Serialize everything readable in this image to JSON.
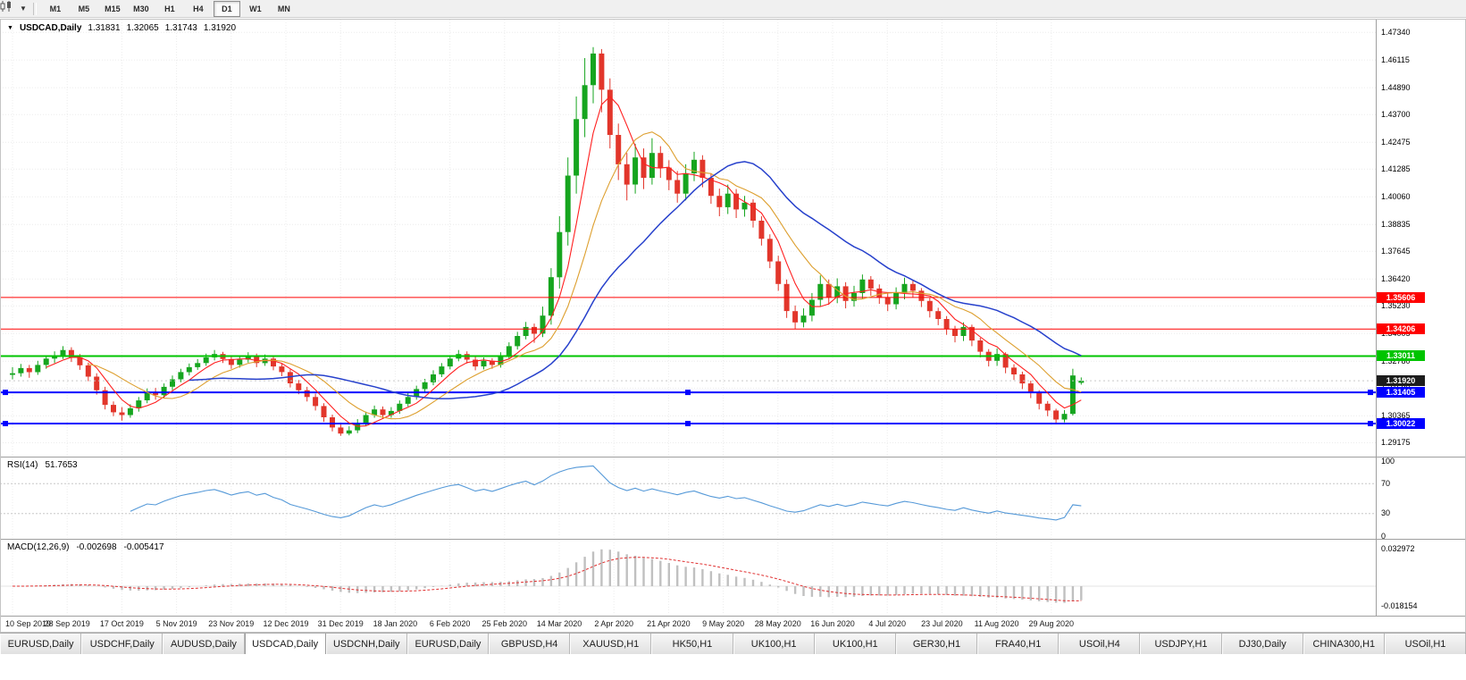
{
  "toolbar": {
    "chart_type_icon": "candlestick-chart-icon",
    "dropdown_icon": "chevron-down-icon",
    "timeframes": [
      "M1",
      "M5",
      "M15",
      "M30",
      "H1",
      "H4",
      "D1",
      "W1",
      "MN"
    ],
    "active_timeframe": "D1"
  },
  "chart_header": {
    "collapse_marker": "▼",
    "symbol": "USDCAD,Daily",
    "open": "1.31831",
    "high": "1.32065",
    "low": "1.31743",
    "close": "1.31920"
  },
  "price_axis_ticks": [
    "1.47340",
    "1.46115",
    "1.44890",
    "1.43700",
    "1.42475",
    "1.41285",
    "1.40060",
    "1.38835",
    "1.37645",
    "1.36420",
    "1.35230",
    "1.34005",
    "1.32780",
    "1.31590",
    "1.30365",
    "1.29175"
  ],
  "hlines": [
    {
      "label": "1.35606",
      "value": 1.35606,
      "color": "#ff0000",
      "width": 1,
      "selected": false
    },
    {
      "label": "1.34206",
      "value": 1.34206,
      "color": "#ff0000",
      "width": 1,
      "selected": false
    },
    {
      "label": "1.33011",
      "value": 1.33011,
      "color": "#00c400",
      "width": 2,
      "selected": false
    },
    {
      "label": "1.31405",
      "value": 1.31405,
      "color": "#0000ff",
      "width": 2,
      "selected": true
    },
    {
      "label": "1.30022",
      "value": 1.30022,
      "color": "#0000ff",
      "width": 2,
      "selected": true
    }
  ],
  "current_price": {
    "label": "1.31920",
    "value": 1.3192,
    "badge_color": "#1c1c1c"
  },
  "date_axis": [
    "10 Sep 2019",
    "28 Sep 2019",
    "17 Oct 2019",
    "5 Nov 2019",
    "23 Nov 2019",
    "12 Dec 2019",
    "31 Dec 2019",
    "18 Jan 2020",
    "6 Feb 2020",
    "25 Feb 2020",
    "14 Mar 2020",
    "2 Apr 2020",
    "21 Apr 2020",
    "9 May 2020",
    "28 May 2020",
    "16 Jun 2020",
    "4 Jul 2020",
    "23 Jul 2020",
    "11 Aug 2020",
    "29 Aug 2020"
  ],
  "rsi_panel": {
    "name": "RSI(14)",
    "value": "51.7653",
    "axis_labels": [
      "100",
      "70",
      "30",
      "0"
    ],
    "axis_values": [
      100,
      70,
      30,
      0
    ],
    "level_lines": [
      70,
      30
    ],
    "line_color": "#5599d8"
  },
  "macd_panel": {
    "name": "MACD(12,26,9)",
    "value_macd": "-0.002698",
    "value_signal": "-0.005417",
    "axis_labels": [
      "0.032972",
      "-0.018154"
    ],
    "axis_values": [
      0.032972,
      -0.018154
    ],
    "histogram_color": "#c0c0c0",
    "signal_color": "#e03030"
  },
  "tabs": [
    "EURUSD,Daily",
    "USDCHF,Daily",
    "AUDUSD,Daily",
    "USDCAD,Daily",
    "USDCNH,Daily",
    "EURUSD,Daily",
    "GBPUSD,H4",
    "XAUUSD,H1",
    "HK50,H1",
    "UK100,H1",
    "UK100,H1",
    "GER30,H1",
    "FRA40,H1",
    "USOil,H4",
    "USDJPY,H1",
    "DJ30,Daily",
    "CHINA300,H1",
    "USOil,H1"
  ],
  "active_tab_index": 3,
  "chart_data": {
    "type": "candlestick",
    "title": "USDCAD Daily",
    "x_range": [
      "10 Sep 2019",
      "4 Sep 2020"
    ],
    "ylim": [
      1.286,
      1.479
    ],
    "up_color": "#16a51f",
    "down_color": "#e2362b",
    "moving_averages": [
      {
        "period": 5,
        "color": "#ff1f1f"
      },
      {
        "period": 10,
        "color": "#dd9f2e"
      },
      {
        "period": 22,
        "color": "#2741cc"
      }
    ],
    "candles": [
      [
        1.3218,
        1.3252,
        1.3198,
        1.3225
      ],
      [
        1.3225,
        1.3266,
        1.321,
        1.3248
      ],
      [
        1.3248,
        1.3262,
        1.3205,
        1.323
      ],
      [
        1.323,
        1.328,
        1.3218,
        1.3262
      ],
      [
        1.3262,
        1.3305,
        1.3245,
        1.329
      ],
      [
        1.329,
        1.3322,
        1.327,
        1.3305
      ],
      [
        1.3305,
        1.3345,
        1.3288,
        1.3328
      ],
      [
        1.3328,
        1.334,
        1.3275,
        1.3295
      ],
      [
        1.3295,
        1.331,
        1.324,
        1.326
      ],
      [
        1.326,
        1.3272,
        1.319,
        1.321
      ],
      [
        1.321,
        1.3225,
        1.313,
        1.315
      ],
      [
        1.315,
        1.3165,
        1.3065,
        1.3085
      ],
      [
        1.3085,
        1.31,
        1.3035,
        1.3052
      ],
      [
        1.3052,
        1.3075,
        1.3015,
        1.304
      ],
      [
        1.304,
        1.3088,
        1.3028,
        1.307
      ],
      [
        1.307,
        1.312,
        1.3055,
        1.3105
      ],
      [
        1.3105,
        1.3158,
        1.3092,
        1.314
      ],
      [
        1.314,
        1.316,
        1.3108,
        1.3128
      ],
      [
        1.3128,
        1.318,
        1.3115,
        1.3165
      ],
      [
        1.3165,
        1.3215,
        1.315,
        1.3198
      ],
      [
        1.3198,
        1.3245,
        1.3185,
        1.323
      ],
      [
        1.323,
        1.3268,
        1.3215,
        1.3252
      ],
      [
        1.3252,
        1.3288,
        1.324,
        1.327
      ],
      [
        1.327,
        1.3312,
        1.3258,
        1.3295
      ],
      [
        1.3295,
        1.3328,
        1.3282,
        1.331
      ],
      [
        1.331,
        1.332,
        1.327,
        1.3288
      ],
      [
        1.3288,
        1.33,
        1.3245,
        1.3262
      ],
      [
        1.3262,
        1.3302,
        1.325,
        1.3285
      ],
      [
        1.3285,
        1.3318,
        1.3272,
        1.33
      ],
      [
        1.33,
        1.3312,
        1.3252,
        1.327
      ],
      [
        1.327,
        1.3308,
        1.3258,
        1.329
      ],
      [
        1.329,
        1.33,
        1.3238,
        1.3255
      ],
      [
        1.3255,
        1.3268,
        1.3212,
        1.323
      ],
      [
        1.323,
        1.3242,
        1.3162,
        1.318
      ],
      [
        1.318,
        1.3195,
        1.3132,
        1.315
      ],
      [
        1.315,
        1.3165,
        1.31,
        1.312
      ],
      [
        1.312,
        1.3135,
        1.306,
        1.308
      ],
      [
        1.308,
        1.3092,
        1.301,
        1.303
      ],
      [
        1.303,
        1.3042,
        1.2968,
        1.2985
      ],
      [
        1.2985,
        1.2998,
        1.2948,
        1.2958
      ],
      [
        1.2958,
        1.299,
        1.295,
        1.2972
      ],
      [
        1.2972,
        1.3022,
        1.296,
        1.3005
      ],
      [
        1.3005,
        1.3055,
        1.2992,
        1.304
      ],
      [
        1.304,
        1.3082,
        1.3028,
        1.3065
      ],
      [
        1.3065,
        1.3078,
        1.3022,
        1.304
      ],
      [
        1.304,
        1.3075,
        1.3028,
        1.3058
      ],
      [
        1.3058,
        1.3105,
        1.3045,
        1.309
      ],
      [
        1.309,
        1.3138,
        1.3078,
        1.312
      ],
      [
        1.312,
        1.317,
        1.3108,
        1.3155
      ],
      [
        1.3155,
        1.32,
        1.3142,
        1.3185
      ],
      [
        1.3185,
        1.3238,
        1.3172,
        1.322
      ],
      [
        1.322,
        1.327,
        1.3208,
        1.3255
      ],
      [
        1.3255,
        1.3305,
        1.3242,
        1.329
      ],
      [
        1.329,
        1.3328,
        1.3278,
        1.331
      ],
      [
        1.331,
        1.3322,
        1.3268,
        1.3285
      ],
      [
        1.3285,
        1.3298,
        1.3238,
        1.3255
      ],
      [
        1.3255,
        1.3295,
        1.3242,
        1.328
      ],
      [
        1.328,
        1.3292,
        1.3245,
        1.3262
      ],
      [
        1.3262,
        1.3318,
        1.325,
        1.33
      ],
      [
        1.33,
        1.3362,
        1.3288,
        1.3345
      ],
      [
        1.3345,
        1.3408,
        1.333,
        1.339
      ],
      [
        1.339,
        1.3452,
        1.3375,
        1.343
      ],
      [
        1.343,
        1.3445,
        1.336,
        1.34
      ],
      [
        1.34,
        1.352,
        1.3385,
        1.348
      ],
      [
        1.348,
        1.369,
        1.344,
        1.365
      ],
      [
        1.365,
        1.392,
        1.36,
        1.385
      ],
      [
        1.385,
        1.418,
        1.379,
        1.41
      ],
      [
        1.41,
        1.445,
        1.402,
        1.435
      ],
      [
        1.435,
        1.462,
        1.427,
        1.45
      ],
      [
        1.45,
        1.4668,
        1.442,
        1.464
      ],
      [
        1.464,
        1.466,
        1.438,
        1.448
      ],
      [
        1.448,
        1.453,
        1.422,
        1.428
      ],
      [
        1.428,
        1.433,
        1.408,
        1.415
      ],
      [
        1.415,
        1.42,
        1.399,
        1.406
      ],
      [
        1.406,
        1.424,
        1.402,
        1.418
      ],
      [
        1.418,
        1.422,
        1.404,
        1.409
      ],
      [
        1.409,
        1.4265,
        1.406,
        1.42
      ],
      [
        1.42,
        1.423,
        1.409,
        1.4135
      ],
      [
        1.4135,
        1.4168,
        1.4035,
        1.408
      ],
      [
        1.408,
        1.412,
        1.398,
        1.402
      ],
      [
        1.402,
        1.415,
        1.399,
        1.411
      ],
      [
        1.411,
        1.4205,
        1.4075,
        1.417
      ],
      [
        1.417,
        1.419,
        1.4048,
        1.409
      ],
      [
        1.409,
        1.411,
        1.3975,
        1.401
      ],
      [
        1.401,
        1.4042,
        1.392,
        1.396
      ],
      [
        1.396,
        1.406,
        1.393,
        1.402
      ],
      [
        1.402,
        1.404,
        1.3912,
        1.395
      ],
      [
        1.395,
        1.401,
        1.3918,
        1.398
      ],
      [
        1.398,
        1.3995,
        1.387,
        1.39
      ],
      [
        1.39,
        1.392,
        1.379,
        1.382
      ],
      [
        1.382,
        1.384,
        1.369,
        1.372
      ],
      [
        1.372,
        1.3745,
        1.359,
        1.362
      ],
      [
        1.362,
        1.364,
        1.347,
        1.35
      ],
      [
        1.35,
        1.3525,
        1.342,
        1.345
      ],
      [
        1.345,
        1.3512,
        1.3428,
        1.348
      ],
      [
        1.348,
        1.358,
        1.3455,
        1.355
      ],
      [
        1.355,
        1.3658,
        1.352,
        1.362
      ],
      [
        1.362,
        1.364,
        1.3528,
        1.356
      ],
      [
        1.356,
        1.3645,
        1.3535,
        1.361
      ],
      [
        1.361,
        1.3628,
        1.3512,
        1.3545
      ],
      [
        1.3545,
        1.3612,
        1.352,
        1.358
      ],
      [
        1.358,
        1.3662,
        1.3555,
        1.364
      ],
      [
        1.364,
        1.3655,
        1.3568,
        1.36
      ],
      [
        1.36,
        1.3618,
        1.3532,
        1.356
      ],
      [
        1.356,
        1.3582,
        1.35,
        1.353
      ],
      [
        1.353,
        1.3605,
        1.3508,
        1.358
      ],
      [
        1.358,
        1.3648,
        1.3552,
        1.362
      ],
      [
        1.362,
        1.3635,
        1.356,
        1.359
      ],
      [
        1.359,
        1.3602,
        1.3518,
        1.3545
      ],
      [
        1.3545,
        1.3558,
        1.3472,
        1.35
      ],
      [
        1.35,
        1.3515,
        1.3438,
        1.3465
      ],
      [
        1.3465,
        1.3478,
        1.3395,
        1.342
      ],
      [
        1.342,
        1.3435,
        1.3362,
        1.339
      ],
      [
        1.339,
        1.345,
        1.3368,
        1.343
      ],
      [
        1.343,
        1.344,
        1.3345,
        1.337
      ],
      [
        1.337,
        1.3382,
        1.3295,
        1.332
      ],
      [
        1.332,
        1.3332,
        1.3255,
        1.328
      ],
      [
        1.328,
        1.3335,
        1.3258,
        1.331
      ],
      [
        1.331,
        1.3318,
        1.3225,
        1.325
      ],
      [
        1.325,
        1.3265,
        1.3195,
        1.322
      ],
      [
        1.322,
        1.3232,
        1.3155,
        1.318
      ],
      [
        1.318,
        1.3192,
        1.3115,
        1.314
      ],
      [
        1.314,
        1.315,
        1.3065,
        1.309
      ],
      [
        1.309,
        1.3102,
        1.3035,
        1.306
      ],
      [
        1.306,
        1.3068,
        1.3002,
        1.302
      ],
      [
        1.302,
        1.3062,
        1.3008,
        1.3045
      ],
      [
        1.3045,
        1.3245,
        1.3038,
        1.3215
      ],
      [
        1.31831,
        1.32065,
        1.31743,
        1.3192
      ]
    ]
  }
}
